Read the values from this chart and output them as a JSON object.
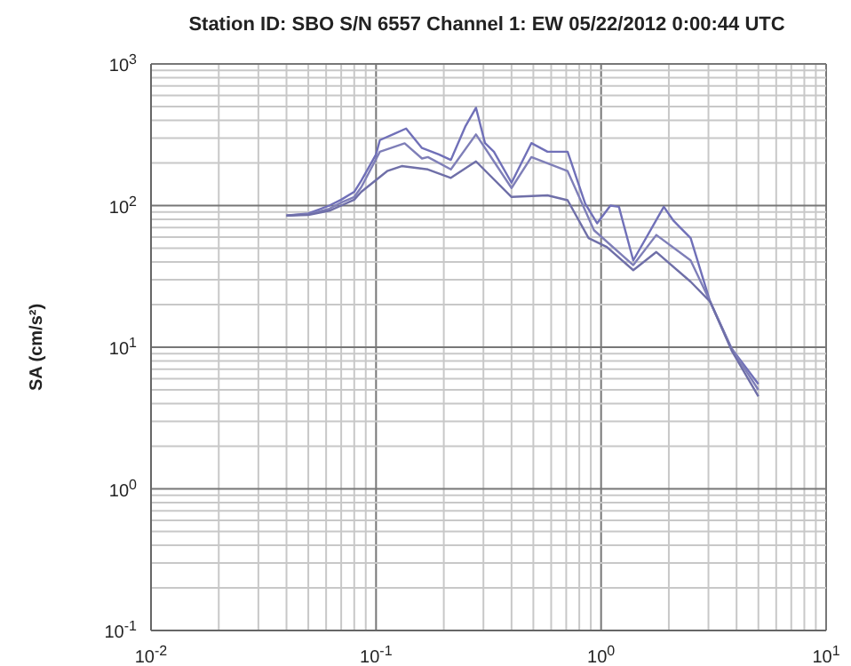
{
  "chart_data": {
    "type": "line",
    "title": "Station ID: SBO S/N 6557  Channel 1: EW  05/22/2012 0:00:44 UTC",
    "ylabel": "SA (cm/s²)",
    "log": "xy",
    "grid": true,
    "marker": "none",
    "line_style": "solid",
    "xlim": [
      0.01,
      10
    ],
    "ylim": [
      0.1,
      1000
    ],
    "xticks": [
      {
        "value": 0.01,
        "label": "10$^{-2}$"
      },
      {
        "value": 0.02,
        "label": null
      },
      {
        "value": 0.03,
        "label": null
      },
      {
        "value": 0.04,
        "label": null
      },
      {
        "value": 0.05,
        "label": null
      },
      {
        "value": 0.06,
        "label": null
      },
      {
        "value": 0.07,
        "label": null
      },
      {
        "value": 0.08,
        "label": null
      },
      {
        "value": 0.09,
        "label": null
      },
      {
        "value": 0.1,
        "label": "10$^{-1}$"
      },
      {
        "value": 0.2,
        "label": null
      },
      {
        "value": 0.3,
        "label": null
      },
      {
        "value": 0.4,
        "label": null
      },
      {
        "value": 0.5,
        "label": null
      },
      {
        "value": 0.6,
        "label": null
      },
      {
        "value": 0.7,
        "label": null
      },
      {
        "value": 0.8,
        "label": null
      },
      {
        "value": 0.9,
        "label": null
      },
      {
        "value": 1,
        "label": "10$^{0}$"
      },
      {
        "value": 2,
        "label": null
      },
      {
        "value": 3,
        "label": null
      },
      {
        "value": 4,
        "label": null
      },
      {
        "value": 5,
        "label": null
      },
      {
        "value": 6,
        "label": null
      },
      {
        "value": 7,
        "label": null
      },
      {
        "value": 8,
        "label": null
      },
      {
        "value": 9,
        "label": null
      },
      {
        "value": 10,
        "label": "10$^{1}$"
      }
    ],
    "yticks": [
      {
        "value": 0.1,
        "label": "10$^{-1}$"
      },
      {
        "value": 0.2,
        "label": null
      },
      {
        "value": 0.3,
        "label": null
      },
      {
        "value": 0.4,
        "label": null
      },
      {
        "value": 0.5,
        "label": null
      },
      {
        "value": 0.6,
        "label": null
      },
      {
        "value": 0.7,
        "label": null
      },
      {
        "value": 0.8,
        "label": null
      },
      {
        "value": 0.9,
        "label": null
      },
      {
        "value": 1,
        "label": "10$^{0}$"
      },
      {
        "value": 2,
        "label": null
      },
      {
        "value": 3,
        "label": null
      },
      {
        "value": 4,
        "label": null
      },
      {
        "value": 5,
        "label": null
      },
      {
        "value": 6,
        "label": null
      },
      {
        "value": 7,
        "label": null
      },
      {
        "value": 8,
        "label": null
      },
      {
        "value": 9,
        "label": null
      },
      {
        "value": 10,
        "label": "10$^{1}$"
      },
      {
        "value": 20,
        "label": null
      },
      {
        "value": 30,
        "label": null
      },
      {
        "value": 40,
        "label": null
      },
      {
        "value": 50,
        "label": null
      },
      {
        "value": 60,
        "label": null
      },
      {
        "value": 70,
        "label": null
      },
      {
        "value": 80,
        "label": null
      },
      {
        "value": 90,
        "label": null
      },
      {
        "value": 100,
        "label": "10$^{2}$"
      },
      {
        "value": 200,
        "label": null
      },
      {
        "value": 300,
        "label": null
      },
      {
        "value": 400,
        "label": null
      },
      {
        "value": 500,
        "label": null
      },
      {
        "value": 600,
        "label": null
      },
      {
        "value": 700,
        "label": null
      },
      {
        "value": 800,
        "label": null
      },
      {
        "value": 900,
        "label": null
      },
      {
        "value": 1000,
        "label": "10$^{3}$"
      }
    ],
    "series": [
      {
        "color": "#7070b8",
        "x": [
          0.04,
          0.05,
          0.062,
          0.07,
          0.08,
          0.086,
          0.1,
          0.104,
          0.12,
          0.136,
          0.16,
          0.19,
          0.215,
          0.25,
          0.278,
          0.305,
          0.334,
          0.4,
          0.49,
          0.578,
          0.71,
          0.85,
          0.96,
          1.1,
          1.2,
          1.39,
          1.9,
          2.1,
          2.5,
          3.05,
          3.8,
          5
        ],
        "values": [
          85,
          88,
          100,
          110,
          125,
          150,
          230,
          290,
          320,
          350,
          255,
          230,
          210,
          365,
          490,
          276,
          240,
          145,
          276,
          240,
          240,
          103,
          75,
          100,
          98,
          41,
          98,
          78,
          59,
          21,
          9.8,
          5.5
        ]
      },
      {
        "color": "#7f7fb8",
        "x": [
          0.04,
          0.05,
          0.062,
          0.07,
          0.08,
          0.086,
          0.104,
          0.134,
          0.16,
          0.17,
          0.215,
          0.278,
          0.334,
          0.4,
          0.49,
          0.71,
          0.93,
          1.39,
          1.76,
          2.5,
          3.05,
          3.8,
          5
        ],
        "values": [
          85,
          87,
          95,
          105,
          115,
          135,
          240,
          275,
          215,
          220,
          180,
          318,
          205,
          133,
          220,
          175,
          67,
          38,
          62,
          41,
          21,
          9.8,
          5
        ]
      },
      {
        "color": "#6f6fa8",
        "x": [
          0.04,
          0.05,
          0.062,
          0.07,
          0.08,
          0.086,
          0.112,
          0.13,
          0.17,
          0.215,
          0.278,
          0.4,
          0.578,
          0.71,
          0.88,
          1.06,
          1.39,
          1.76,
          2.5,
          3.05,
          3.8,
          5
        ],
        "values": [
          85,
          86,
          92,
          100,
          110,
          125,
          175,
          190,
          180,
          157,
          205,
          115,
          118,
          109,
          59,
          51,
          35,
          47,
          29,
          21,
          9.5,
          4.5
        ]
      }
    ]
  }
}
